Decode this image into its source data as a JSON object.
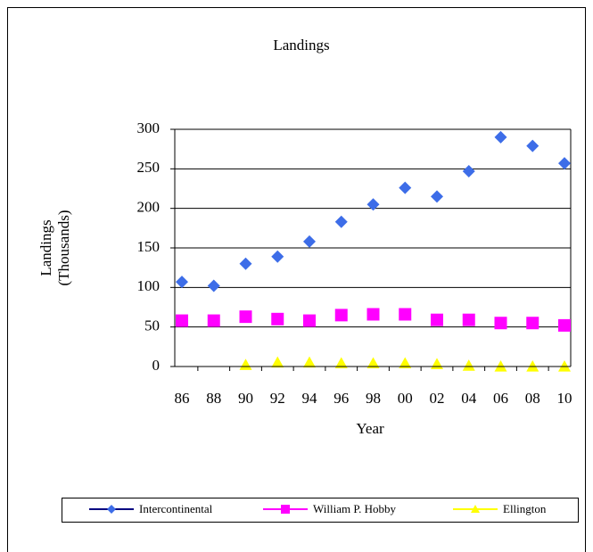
{
  "chart_data": {
    "type": "scatter",
    "title": "Landings",
    "x_label": "Year",
    "y_label": [
      "Landings",
      "(Thousands)"
    ],
    "categories": [
      "86",
      "88",
      "90",
      "92",
      "94",
      "96",
      "98",
      "00",
      "02",
      "04",
      "06",
      "08",
      "10"
    ],
    "series": [
      {
        "name": "Intercontinental",
        "color": "#3d6de8",
        "line_color": "#000080",
        "marker": "diamond",
        "values": [
          107,
          102,
          130,
          139,
          158,
          183,
          205,
          226,
          215,
          247,
          290,
          279,
          257
        ]
      },
      {
        "name": "William P. Hobby",
        "color": "#ff00ff",
        "line_color": "#ff00ff",
        "marker": "square",
        "values": [
          58,
          58,
          63,
          60,
          58,
          65,
          66,
          66,
          59,
          59,
          55,
          55,
          52
        ]
      },
      {
        "name": "Ellington",
        "color": "#ffff00",
        "line_color": "#ffff00",
        "marker": "triangle",
        "values": [
          null,
          null,
          2,
          5,
          5,
          4,
          4,
          4,
          3,
          1,
          0,
          0,
          0
        ]
      }
    ],
    "ylim": [
      0,
      300
    ],
    "yticks": [
      0,
      50,
      100,
      150,
      200,
      250,
      300
    ],
    "grid": true,
    "legend": "bottom"
  }
}
